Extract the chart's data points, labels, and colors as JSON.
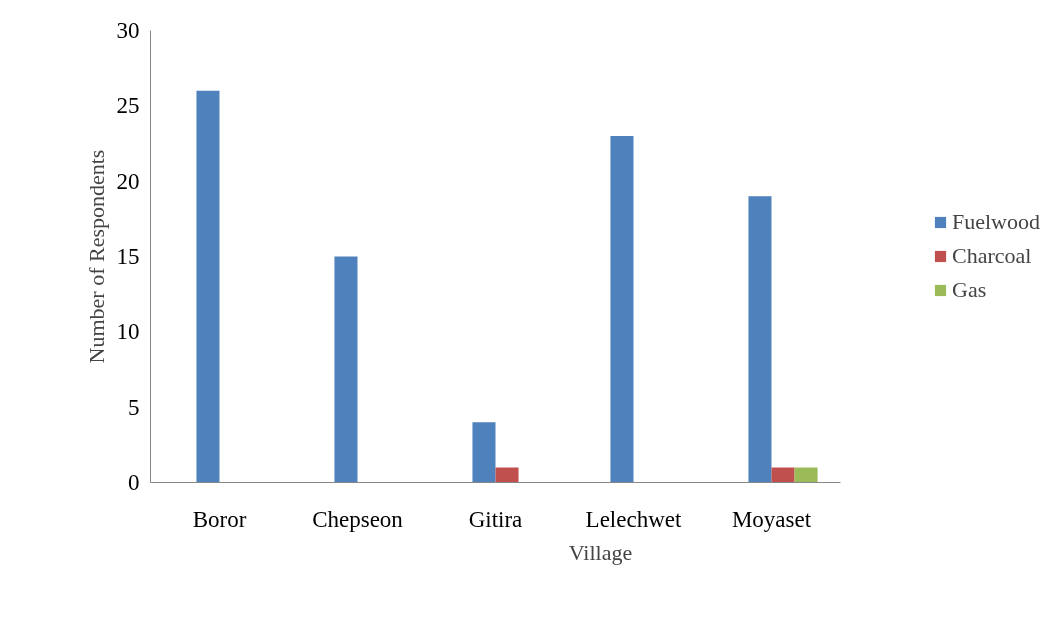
{
  "chart_data": {
    "type": "bar",
    "xlabel": "Village",
    "ylabel": "Number of Respondents",
    "categories": [
      "Boror",
      "Chepseon",
      "Gitira",
      "Lelechwet",
      "Moyaset"
    ],
    "series": [
      {
        "name": "Fuelwood",
        "color": "#4f81bd",
        "values": [
          26,
          15,
          4,
          23,
          19
        ]
      },
      {
        "name": "Charcoal",
        "color": "#c0504d",
        "values": [
          0,
          0,
          1,
          0,
          1
        ]
      },
      {
        "name": "Gas",
        "color": "#9bbb59",
        "values": [
          0,
          0,
          0,
          0,
          1
        ]
      }
    ],
    "ylim": [
      0,
      30
    ],
    "yticks": [
      0,
      5,
      10,
      15,
      20,
      25,
      30
    ],
    "grid": false,
    "legend": "right"
  }
}
